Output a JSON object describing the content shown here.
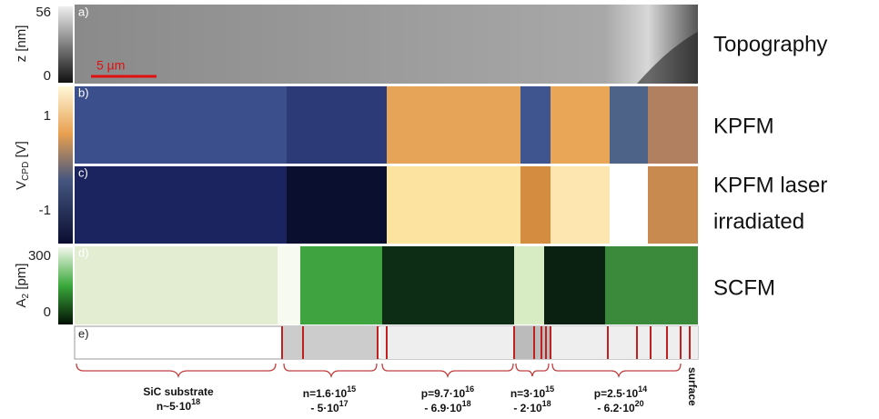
{
  "panels": {
    "a": "a)",
    "b": "b)",
    "c": "c)",
    "d": "d)",
    "e": "e)"
  },
  "topography_axis": {
    "max": "56",
    "min": "0",
    "label": "z [nm]",
    "scale_bar": "5 µm"
  },
  "cpd_axis": {
    "max": "1",
    "min": "-1",
    "label_base": "V",
    "label_sub": "CPD",
    "label_unit": " [V]"
  },
  "amp_axis": {
    "max": "300",
    "min": "0",
    "label_base": "A",
    "label_sub": "2",
    "label_unit": " [pm]"
  },
  "row_labels": [
    "Topography",
    "KPFM",
    "KPFM laser",
    "irradiated",
    "SCFM"
  ],
  "regions": [
    {
      "name": "SiC substrate",
      "line2": {
        "base": "n~5·10",
        "exp": "18"
      }
    },
    {
      "line1": {
        "base": "n=1.6·10",
        "exp": "15"
      },
      "line2": {
        "base": "- 5·10",
        "exp": "17"
      }
    },
    {
      "line1": {
        "base": "p=9.7·10",
        "exp": "16"
      },
      "line2": {
        "base": "- 6.9·10",
        "exp": "18"
      }
    },
    {
      "line1": {
        "base": "n=3·10",
        "exp": "15"
      },
      "line2": {
        "base": "- 2·10",
        "exp": "18"
      }
    },
    {
      "line1": {
        "base": "p=2.5·10",
        "exp": "14"
      },
      "line2": {
        "base": "- 6.2·10",
        "exp": "20"
      }
    },
    {
      "name": "surface"
    }
  ]
}
